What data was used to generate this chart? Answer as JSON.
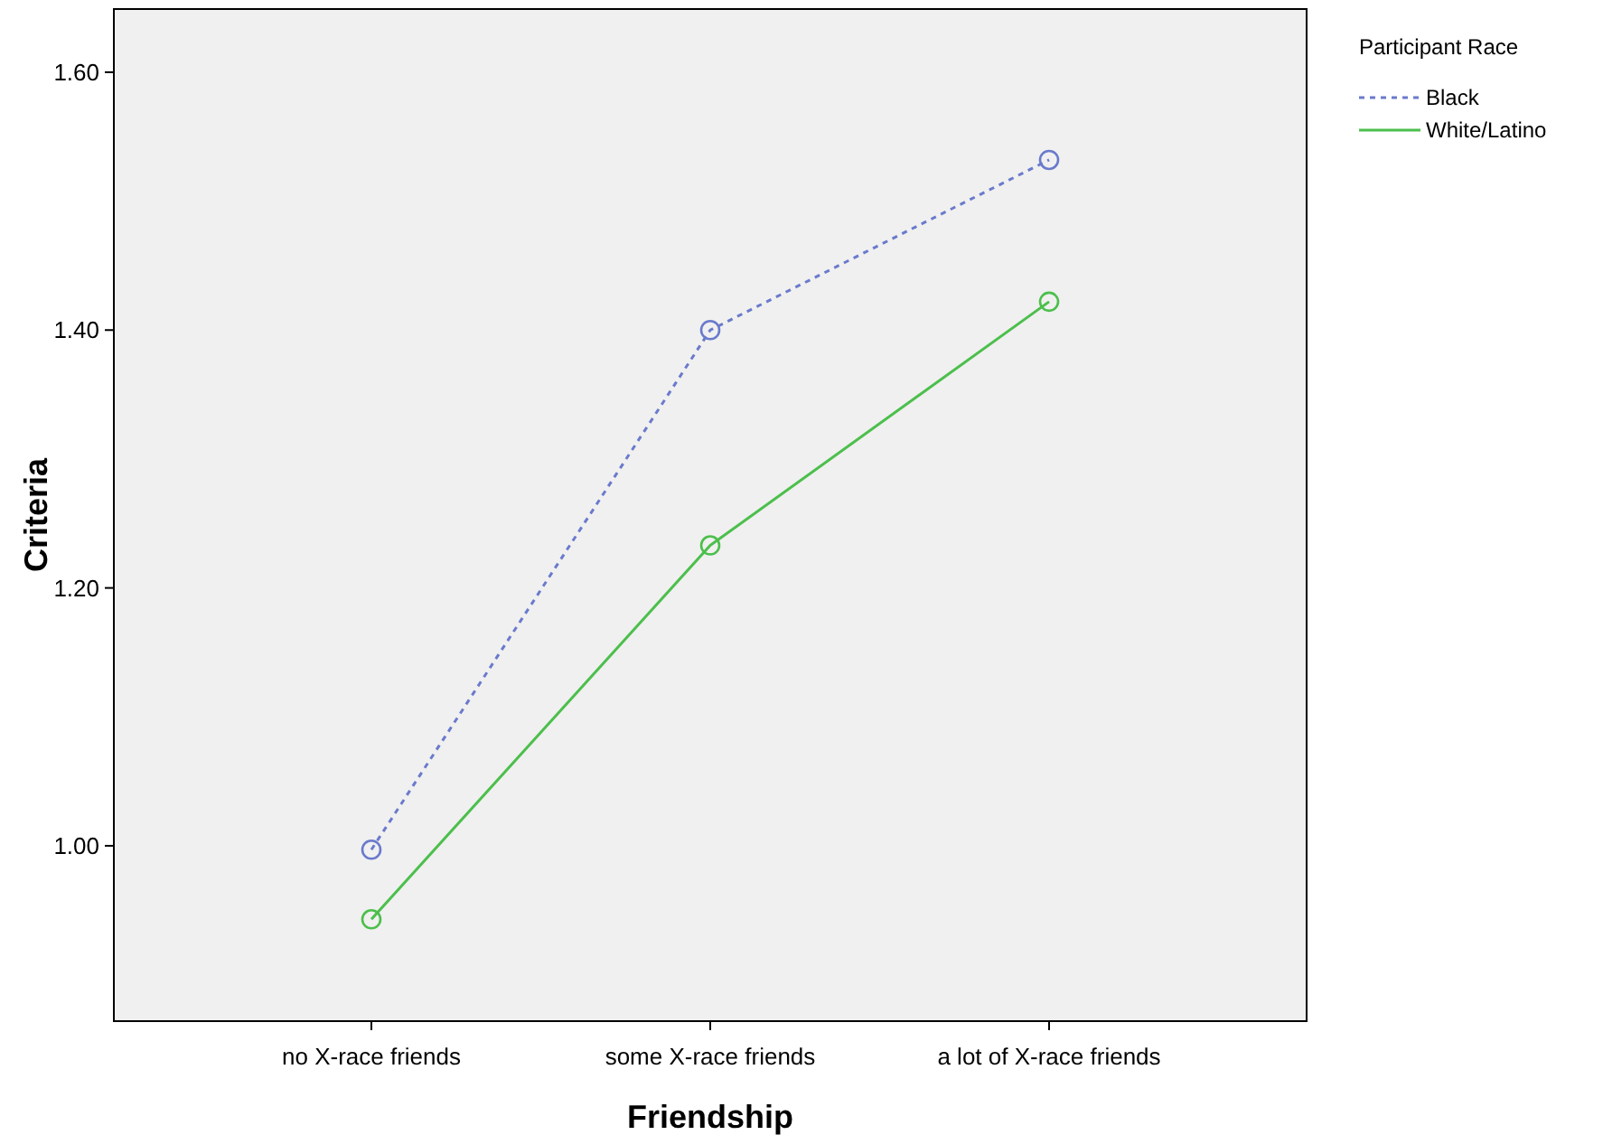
{
  "chart_data": {
    "type": "line",
    "xlabel": "Friendship",
    "ylabel": "Criteria",
    "legend_title": "Participant Race",
    "categories": [
      "no X-race friends",
      "some X-race friends",
      "a lot of X-race friends"
    ],
    "series": [
      {
        "name": "Black",
        "color": "#6a7acc",
        "values": [
          0.997,
          1.4,
          1.532
        ],
        "line_style": "dotted"
      },
      {
        "name": "White/Latino",
        "color": "#4cbf4c",
        "values": [
          0.943,
          1.233,
          1.422
        ],
        "line_style": "solid"
      }
    ],
    "ylim": [
      0.864,
      1.649
    ],
    "yticks": [
      {
        "value": 1.0,
        "label": "1.00"
      },
      {
        "value": 1.2,
        "label": "1.20"
      },
      {
        "value": 1.4,
        "label": "1.40"
      },
      {
        "value": 1.6,
        "label": "1.60"
      }
    ],
    "marker": "circle",
    "legend": "top right",
    "grid": false
  }
}
